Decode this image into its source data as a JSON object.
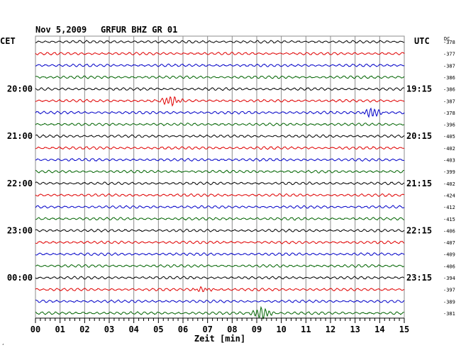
{
  "header": {
    "date": "Nov 5,2009",
    "station": "GRFUR BHZ GR 01",
    "left_zone": "CET",
    "right_zone": "UTC",
    "dc_label": "DC"
  },
  "footer": {
    "xlabel": "Zeit [min]",
    "corner_mark": "¸"
  },
  "colors": {
    "cycle": [
      "#000000",
      "#e00000",
      "#0000c8",
      "#006400"
    ],
    "grid": "#8c8c8c",
    "text": "#000000"
  },
  "chart_data": {
    "type": "line",
    "title": "Nov 5,2009   GRFUR BHZ GR 01",
    "xlabel": "Zeit [min]",
    "ylabel": "",
    "xlim": [
      0,
      15
    ],
    "x_ticks": [
      "00",
      "01",
      "02",
      "03",
      "04",
      "05",
      "06",
      "07",
      "08",
      "09",
      "10",
      "11",
      "12",
      "13",
      "14",
      "15"
    ],
    "grid": true,
    "rows": 24,
    "minutes_per_row": 15,
    "left_labels": [
      {
        "row": 4,
        "text": "20:00"
      },
      {
        "row": 8,
        "text": "21:00"
      },
      {
        "row": 12,
        "text": "22:00"
      },
      {
        "row": 16,
        "text": "23:00"
      },
      {
        "row": 20,
        "text": "00:00"
      }
    ],
    "right_labels": [
      {
        "row": 4,
        "text": "19:15"
      },
      {
        "row": 8,
        "text": "20:15"
      },
      {
        "row": 12,
        "text": "21:15"
      },
      {
        "row": 16,
        "text": "22:15"
      },
      {
        "row": 20,
        "text": "23:15"
      }
    ],
    "dc_values": [
      "-378",
      "-377",
      "-387",
      "-386",
      "-386",
      "-387",
      "-378",
      "-396",
      "-405",
      "-402",
      "-403",
      "-399",
      "-402",
      "-424",
      "-412",
      "-415",
      "-406",
      "-407",
      "-409",
      "-406",
      "-394",
      "-397",
      "-389",
      "-381"
    ],
    "events": [
      {
        "row": 5,
        "minute": 5.5,
        "amplitude": 1.0
      },
      {
        "row": 6,
        "minute": 13.7,
        "amplitude": 1.0
      },
      {
        "row": 21,
        "minute": 6.8,
        "amplitude": 0.5
      },
      {
        "row": 23,
        "minute": 9.2,
        "amplitude": 1.3
      }
    ]
  }
}
